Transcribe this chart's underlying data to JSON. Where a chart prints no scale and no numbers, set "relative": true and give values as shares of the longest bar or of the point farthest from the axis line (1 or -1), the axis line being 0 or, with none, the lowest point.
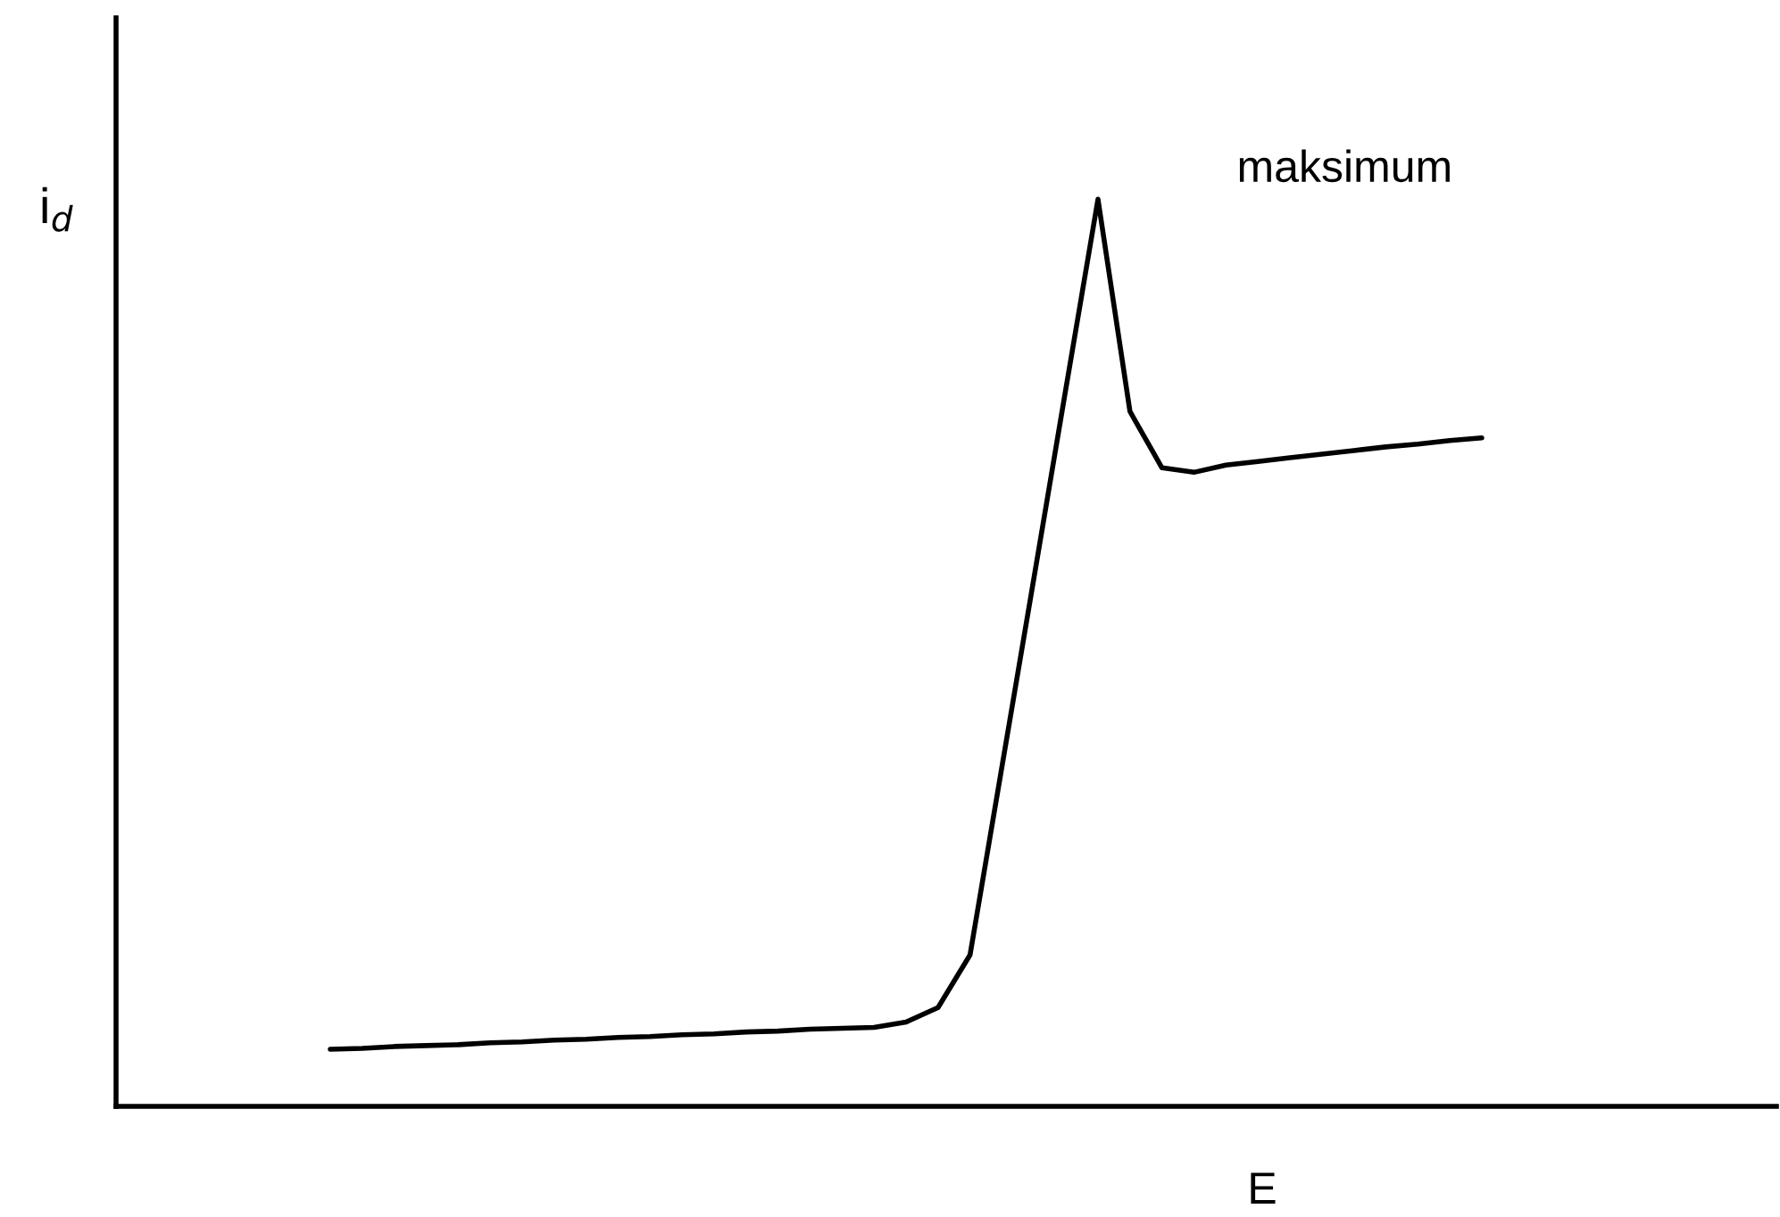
{
  "chart_data": {
    "type": "line",
    "relative": true,
    "xlabel": "E",
    "ylabel": "i$_{d}$",
    "annotations": [
      "maksimum"
    ],
    "line_style": "solid",
    "categories": [
      null,
      null,
      null,
      null,
      null,
      null,
      null,
      null,
      null,
      null,
      null,
      null,
      null,
      null,
      null,
      null,
      null,
      null,
      null,
      null,
      null,
      null,
      null,
      null,
      null,
      null,
      null,
      null,
      null,
      null,
      null,
      null,
      null,
      null,
      null,
      null,
      null
    ],
    "series": [
      {
        "color": "#000000",
        "values": [
          0.063,
          0.064,
          0.066,
          0.067,
          0.068,
          0.07,
          0.071,
          0.073,
          0.074,
          0.076,
          0.077,
          0.079,
          0.08,
          0.082,
          0.083,
          0.085,
          0.086,
          0.087,
          0.093,
          0.109,
          0.167,
          0.375,
          0.583,
          0.792,
          1.0,
          0.766,
          0.704,
          0.699,
          0.707,
          0.711,
          0.715,
          0.719,
          0.723,
          0.727,
          0.73,
          0.734,
          0.737
        ]
      }
    ]
  }
}
